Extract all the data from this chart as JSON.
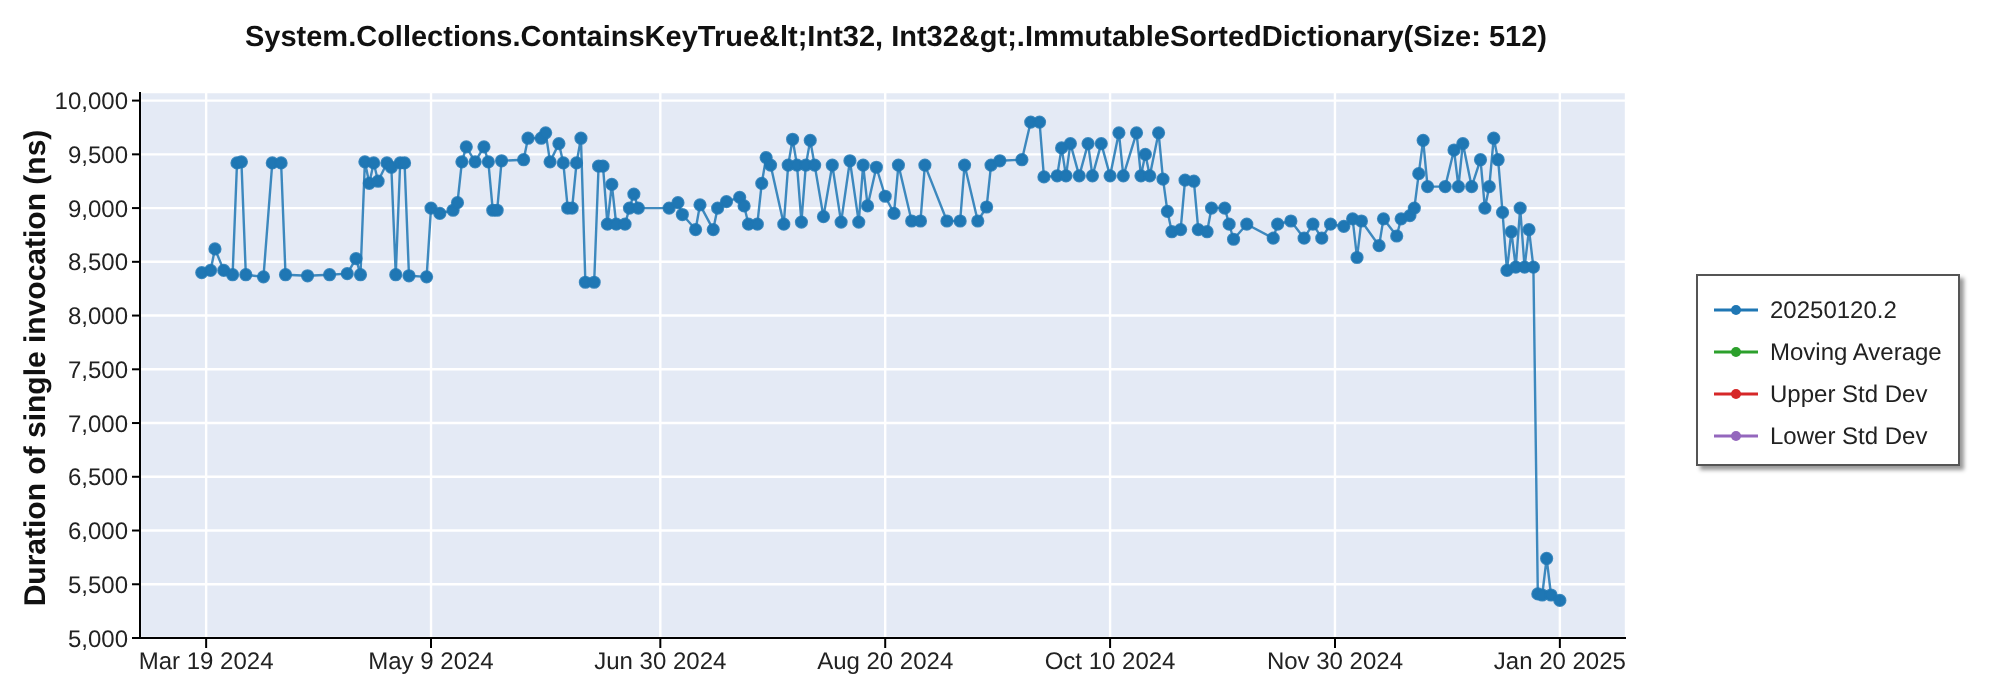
{
  "chart_data": {
    "type": "line",
    "title": "System.Collections.ContainsKeyTrue&lt;Int32, Int32&gt;.ImmutableSortedDictionary(Size: 512)",
    "ylabel": "Duration of single invocation (ns)",
    "x": [
      "2024-03-18",
      "2024-03-20",
      "2024-03-21",
      "2024-03-23",
      "2024-03-25",
      "2024-03-26",
      "2024-03-27",
      "2024-03-28",
      "2024-04-01",
      "2024-04-03",
      "2024-04-05",
      "2024-04-06",
      "2024-04-11",
      "2024-04-16",
      "2024-04-20",
      "2024-04-22",
      "2024-04-23",
      "2024-04-24",
      "2024-04-25",
      "2024-04-26",
      "2024-04-27",
      "2024-04-29",
      "2024-04-30",
      "2024-05-01",
      "2024-05-02",
      "2024-05-03",
      "2024-05-04",
      "2024-05-08",
      "2024-05-09",
      "2024-05-11",
      "2024-05-14",
      "2024-05-15",
      "2024-05-16",
      "2024-05-17",
      "2024-05-19",
      "2024-05-21",
      "2024-05-22",
      "2024-05-23",
      "2024-05-24",
      "2024-05-25",
      "2024-05-30",
      "2024-05-31",
      "2024-06-03",
      "2024-06-04",
      "2024-06-05",
      "2024-06-07",
      "2024-06-08",
      "2024-06-09",
      "2024-06-10",
      "2024-06-11",
      "2024-06-12",
      "2024-06-13",
      "2024-06-15",
      "2024-06-16",
      "2024-06-17",
      "2024-06-18",
      "2024-06-19",
      "2024-06-20",
      "2024-06-22",
      "2024-06-23",
      "2024-06-24",
      "2024-06-25",
      "2024-07-02",
      "2024-07-04",
      "2024-07-05",
      "2024-07-08",
      "2024-07-09",
      "2024-07-12",
      "2024-07-13",
      "2024-07-15",
      "2024-07-18",
      "2024-07-19",
      "2024-07-20",
      "2024-07-22",
      "2024-07-23",
      "2024-07-24",
      "2024-07-25",
      "2024-07-28",
      "2024-07-29",
      "2024-07-30",
      "2024-07-31",
      "2024-08-01",
      "2024-08-02",
      "2024-08-03",
      "2024-08-04",
      "2024-08-06",
      "2024-08-08",
      "2024-08-10",
      "2024-08-12",
      "2024-08-14",
      "2024-08-15",
      "2024-08-16",
      "2024-08-18",
      "2024-08-20",
      "2024-08-22",
      "2024-08-23",
      "2024-08-26",
      "2024-08-28",
      "2024-08-29",
      "2024-09-03",
      "2024-09-06",
      "2024-09-07",
      "2024-09-10",
      "2024-09-12",
      "2024-09-13",
      "2024-09-15",
      "2024-09-20",
      "2024-09-22",
      "2024-09-24",
      "2024-09-25",
      "2024-09-28",
      "2024-09-29",
      "2024-09-30",
      "2024-10-01",
      "2024-10-03",
      "2024-10-05",
      "2024-10-06",
      "2024-10-08",
      "2024-10-10",
      "2024-10-12",
      "2024-10-13",
      "2024-10-16",
      "2024-10-17",
      "2024-10-18",
      "2024-10-19",
      "2024-10-21",
      "2024-10-22",
      "2024-10-23",
      "2024-10-24",
      "2024-10-26",
      "2024-10-27",
      "2024-10-29",
      "2024-10-30",
      "2024-11-01",
      "2024-11-02",
      "2024-11-05",
      "2024-11-06",
      "2024-11-07",
      "2024-11-10",
      "2024-11-16",
      "2024-11-17",
      "2024-11-20",
      "2024-11-23",
      "2024-11-25",
      "2024-11-27",
      "2024-11-29",
      "2024-12-02",
      "2024-12-04",
      "2024-12-05",
      "2024-12-06",
      "2024-12-10",
      "2024-12-11",
      "2024-12-14",
      "2024-12-15",
      "2024-12-17",
      "2024-12-18",
      "2024-12-19",
      "2024-12-20",
      "2024-12-21",
      "2024-12-25",
      "2024-12-27",
      "2024-12-28",
      "2024-12-29",
      "2024-12-31",
      "2025-01-02",
      "2025-01-03",
      "2025-01-04",
      "2025-01-05",
      "2025-01-06",
      "2025-01-07",
      "2025-01-08",
      "2025-01-09",
      "2025-01-10",
      "2025-01-11",
      "2025-01-12",
      "2025-01-13",
      "2025-01-14",
      "2025-01-15",
      "2025-01-16",
      "2025-01-17",
      "2025-01-18",
      "2025-01-20"
    ],
    "series": [
      {
        "name": "20250120.2",
        "color": "#1f77b4",
        "values": [
          8400,
          8420,
          8620,
          8420,
          8380,
          9420,
          9430,
          8380,
          8360,
          9420,
          9420,
          8380,
          8370,
          8380,
          8390,
          8530,
          8380,
          9430,
          9230,
          9420,
          9250,
          9420,
          9380,
          8380,
          9420,
          9420,
          8370,
          8360,
          9000,
          8950,
          8980,
          9050,
          9430,
          9570,
          9430,
          9570,
          9430,
          8980,
          8980,
          9440,
          9450,
          9650,
          9650,
          9700,
          9430,
          9600,
          9420,
          9000,
          9000,
          9420,
          9650,
          8310,
          8310,
          9390,
          9390,
          8850,
          9220,
          8850,
          8850,
          9000,
          9130,
          9000,
          9000,
          9050,
          8940,
          8800,
          9030,
          8800,
          9000,
          9060,
          9100,
          9020,
          8850,
          8850,
          9230,
          9470,
          9400,
          8850,
          9400,
          9640,
          9400,
          8870,
          9400,
          9630,
          9400,
          8920,
          9400,
          8870,
          9440,
          8870,
          9400,
          9020,
          9380,
          9110,
          8950,
          9400,
          8880,
          8880,
          9400,
          8880,
          8880,
          9400,
          8880,
          9010,
          9400,
          9440,
          9450,
          9800,
          9800,
          9290,
          9300,
          9560,
          9300,
          9600,
          9300,
          9600,
          9300,
          9600,
          9300,
          9700,
          9300,
          9700,
          9300,
          9500,
          9300,
          9700,
          9270,
          8970,
          8780,
          8800,
          9260,
          9250,
          8800,
          8780,
          9000,
          9000,
          8850,
          8710,
          8850,
          8720,
          8850,
          8880,
          8720,
          8850,
          8720,
          8850,
          8830,
          8900,
          8540,
          8880,
          8650,
          8900,
          8740,
          8900,
          8930,
          9000,
          9320,
          9630,
          9200,
          9200,
          9540,
          9200,
          9600,
          9200,
          9450,
          9000,
          9200,
          9650,
          9450,
          8960,
          8420,
          8780,
          8450,
          9000,
          8450,
          8800,
          8450,
          5410,
          5400,
          5740,
          5400,
          5350
        ]
      },
      {
        "name": "Moving Average",
        "color": "#2ca02c",
        "values": [
          null,
          null,
          null,
          null,
          null,
          null,
          null,
          null,
          null,
          null,
          null,
          null,
          null,
          null,
          null,
          null,
          null,
          null,
          null,
          null,
          null,
          null,
          null,
          null,
          null,
          null,
          null,
          null,
          null,
          null,
          null,
          null,
          null,
          null,
          null,
          null,
          null,
          null,
          null,
          null,
          null,
          null,
          null,
          null,
          null,
          null,
          null,
          null,
          null,
          null,
          null,
          null,
          null,
          null,
          null,
          null,
          null,
          null,
          null,
          null,
          null,
          null,
          null,
          null,
          null,
          null,
          null,
          null,
          null,
          null,
          null,
          null,
          null,
          null,
          null,
          null,
          null,
          null,
          null,
          null,
          null,
          null,
          null,
          null,
          null,
          null,
          null,
          null,
          null,
          null,
          null,
          null,
          null,
          null,
          null,
          null,
          null,
          null,
          null,
          null,
          null,
          null,
          null,
          null,
          null,
          null,
          null,
          null,
          null,
          null,
          null,
          null,
          null,
          null,
          null,
          null,
          null,
          null,
          null,
          null,
          null,
          null,
          null,
          null,
          null,
          null,
          null,
          null,
          null,
          null,
          null,
          null,
          null,
          null,
          null,
          null,
          null,
          null,
          null,
          null,
          null,
          null,
          null,
          null,
          null,
          null,
          null,
          null,
          null,
          null,
          null,
          null,
          null,
          null,
          null,
          null,
          null,
          null,
          null,
          null,
          null,
          null,
          null,
          null,
          null,
          null,
          null,
          null,
          null,
          null,
          null,
          null,
          null,
          null,
          null,
          null,
          null,
          null,
          null,
          null,
          null,
          null
        ]
      },
      {
        "name": "Upper Std Dev",
        "color": "#d62728",
        "values": [
          null,
          null,
          null,
          null,
          null,
          null,
          null,
          null,
          null,
          null,
          null,
          null,
          null,
          null,
          null,
          null,
          null,
          null,
          null,
          null,
          null,
          null,
          null,
          null,
          null,
          null,
          null,
          null,
          null,
          null,
          null,
          null,
          null,
          null,
          null,
          null,
          null,
          null,
          null,
          null,
          null,
          null,
          null,
          null,
          null,
          null,
          null,
          null,
          null,
          null,
          null,
          null,
          null,
          null,
          null,
          null,
          null,
          null,
          null,
          null,
          null,
          null,
          null,
          null,
          null,
          null,
          null,
          null,
          null,
          null,
          null,
          null,
          null,
          null,
          null,
          null,
          null,
          null,
          null,
          null,
          null,
          null,
          null,
          null,
          null,
          null,
          null,
          null,
          null,
          null,
          null,
          null,
          null,
          null,
          null,
          null,
          null,
          null,
          null,
          null,
          null,
          null,
          null,
          null,
          null,
          null,
          null,
          null,
          null,
          null,
          null,
          null,
          null,
          null,
          null,
          null,
          null,
          null,
          null,
          null,
          null,
          null,
          null,
          null,
          null,
          null,
          null,
          null,
          null,
          null,
          null,
          null,
          null,
          null,
          null,
          null,
          null,
          null,
          null,
          null,
          null,
          null,
          null,
          null,
          null,
          null,
          null,
          null,
          null,
          null,
          null,
          null,
          null,
          null,
          null,
          null,
          null,
          null,
          null,
          null,
          null,
          null,
          null,
          null,
          null,
          null,
          null,
          null,
          null,
          null,
          null,
          null,
          null,
          null,
          null,
          null,
          null,
          null,
          null,
          null,
          null,
          null
        ]
      },
      {
        "name": "Lower Std Dev",
        "color": "#9467bd",
        "values": [
          null,
          null,
          null,
          null,
          null,
          null,
          null,
          null,
          null,
          null,
          null,
          null,
          null,
          null,
          null,
          null,
          null,
          null,
          null,
          null,
          null,
          null,
          null,
          null,
          null,
          null,
          null,
          null,
          null,
          null,
          null,
          null,
          null,
          null,
          null,
          null,
          null,
          null,
          null,
          null,
          null,
          null,
          null,
          null,
          null,
          null,
          null,
          null,
          null,
          null,
          null,
          null,
          null,
          null,
          null,
          null,
          null,
          null,
          null,
          null,
          null,
          null,
          null,
          null,
          null,
          null,
          null,
          null,
          null,
          null,
          null,
          null,
          null,
          null,
          null,
          null,
          null,
          null,
          null,
          null,
          null,
          null,
          null,
          null,
          null,
          null,
          null,
          null,
          null,
          null,
          null,
          null,
          null,
          null,
          null,
          null,
          null,
          null,
          null,
          null,
          null,
          null,
          null,
          null,
          null,
          null,
          null,
          null,
          null,
          null,
          null,
          null,
          null,
          null,
          null,
          null,
          null,
          null,
          null,
          null,
          null,
          null,
          null,
          null,
          null,
          null,
          null,
          null,
          null,
          null,
          null,
          null,
          null,
          null,
          null,
          null,
          null,
          null,
          null,
          null,
          null,
          null,
          null,
          null,
          null,
          null,
          null,
          null,
          null,
          null,
          null,
          null,
          null,
          null,
          null,
          null,
          null,
          null,
          null,
          null,
          null,
          null,
          null,
          null,
          null,
          null,
          null,
          null,
          null,
          null,
          null,
          null,
          null,
          null,
          null,
          null,
          null,
          null,
          null,
          null,
          null,
          null
        ]
      }
    ],
    "xlim": [
      "2024-03-04",
      "2025-02-04"
    ],
    "xticks": [
      {
        "value": "2024-03-19",
        "label": "Mar 19 2024"
      },
      {
        "value": "2024-05-09",
        "label": "May 9 2024"
      },
      {
        "value": "2024-06-30",
        "label": "Jun 30 2024"
      },
      {
        "value": "2024-08-20",
        "label": "Aug 20 2024"
      },
      {
        "value": "2024-10-10",
        "label": "Oct 10 2024"
      },
      {
        "value": "2024-11-30",
        "label": "Nov 30 2024"
      },
      {
        "value": "2025-01-20",
        "label": "Jan 20 2025"
      }
    ],
    "ylim": [
      5000,
      10080
    ],
    "yticks": [
      {
        "value": 5000,
        "label": "5,000"
      },
      {
        "value": 5500,
        "label": "5,500"
      },
      {
        "value": 6000,
        "label": "6,000"
      },
      {
        "value": 6500,
        "label": "6,500"
      },
      {
        "value": 7000,
        "label": "7,000"
      },
      {
        "value": 7500,
        "label": "7,500"
      },
      {
        "value": 8000,
        "label": "8,000"
      },
      {
        "value": 8500,
        "label": "8,500"
      },
      {
        "value": 9000,
        "label": "9,000"
      },
      {
        "value": 9500,
        "label": "9,500"
      },
      {
        "value": 10000,
        "label": "10,000"
      }
    ],
    "grid": true,
    "legend": "right",
    "marker": "circle",
    "line_style": "solid"
  }
}
